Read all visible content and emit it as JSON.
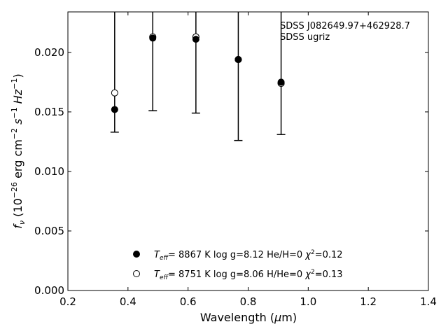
{
  "chart_data": {
    "type": "scatter",
    "annotation_lines": [
      "SDSS J082649.97+462928.7",
      "SDSS ugriz"
    ],
    "xlabel": {
      "base": "Wavelength (",
      "mu": "μ",
      "tail": "m)"
    },
    "ylabel": {
      "base": "f",
      "sub": "ν",
      "rest": " (10",
      "exp": "−26",
      "units": " erg cm",
      "exp2": "−2",
      "s": " s",
      "exp3": "−1",
      "hz": " Hz",
      "exp4": "−1",
      "close": ")"
    },
    "xlim": [
      0.2,
      1.4
    ],
    "ylim": [
      0.0,
      0.0234
    ],
    "xticks": [
      0.2,
      0.4,
      0.6,
      0.8,
      1.0,
      1.2,
      1.4
    ],
    "xtick_labels": [
      "0.2",
      "0.4",
      "0.6",
      "0.8",
      "1.0",
      "1.2",
      "1.4"
    ],
    "yticks": [
      0.0,
      0.005,
      0.01,
      0.015,
      0.02
    ],
    "ytick_labels": [
      "0.000",
      "0.005",
      "0.010",
      "0.015",
      "0.020"
    ],
    "observed": [
      {
        "x": 0.3557,
        "y": 0.0166,
        "err_low": 0.0133,
        "err_high": 0.0234
      },
      {
        "x": 0.4825,
        "y": 0.0213,
        "err_low": 0.0151,
        "err_high": 0.0234
      },
      {
        "x": 0.6261,
        "y": 0.0213,
        "err_low": 0.0149,
        "err_high": 0.0234
      },
      {
        "x": 0.7672,
        "y": 0.0194,
        "err_low": 0.0126,
        "err_high": 0.0234
      },
      {
        "x": 0.9097,
        "y": 0.0174,
        "err_low": 0.0131,
        "err_high": 0.0234
      }
    ],
    "series": [
      {
        "fill": "#000000",
        "values": [
          {
            "x": 0.3557,
            "y": 0.0152
          },
          {
            "x": 0.4825,
            "y": 0.0212
          },
          {
            "x": 0.6261,
            "y": 0.0211
          },
          {
            "x": 0.7672,
            "y": 0.0194
          },
          {
            "x": 0.9097,
            "y": 0.0175
          }
        ]
      },
      {
        "fill": "#ffffff",
        "values": [
          {
            "x": 0.4825,
            "y": 0.0213
          },
          {
            "x": 0.6261,
            "y": 0.0213
          },
          {
            "x": 0.7672,
            "y": 0.0194
          },
          {
            "x": 0.9097,
            "y": 0.0174
          }
        ]
      }
    ],
    "legend": [
      {
        "teff_label": "T",
        "teff_sub": "eff",
        "text": "=  8867 K  log g=8.12  He/H=0  ",
        "chi": "χ",
        "chi_sup": "2",
        "chi_tail": "=0.12",
        "fill": "#000000"
      },
      {
        "teff_label": "T",
        "teff_sub": "eff",
        "text": "=  8751 K  log g=8.06  H/He=0  ",
        "chi": "χ",
        "chi_sup": "2",
        "chi_tail": "=0.13",
        "fill": "#ffffff"
      }
    ]
  }
}
